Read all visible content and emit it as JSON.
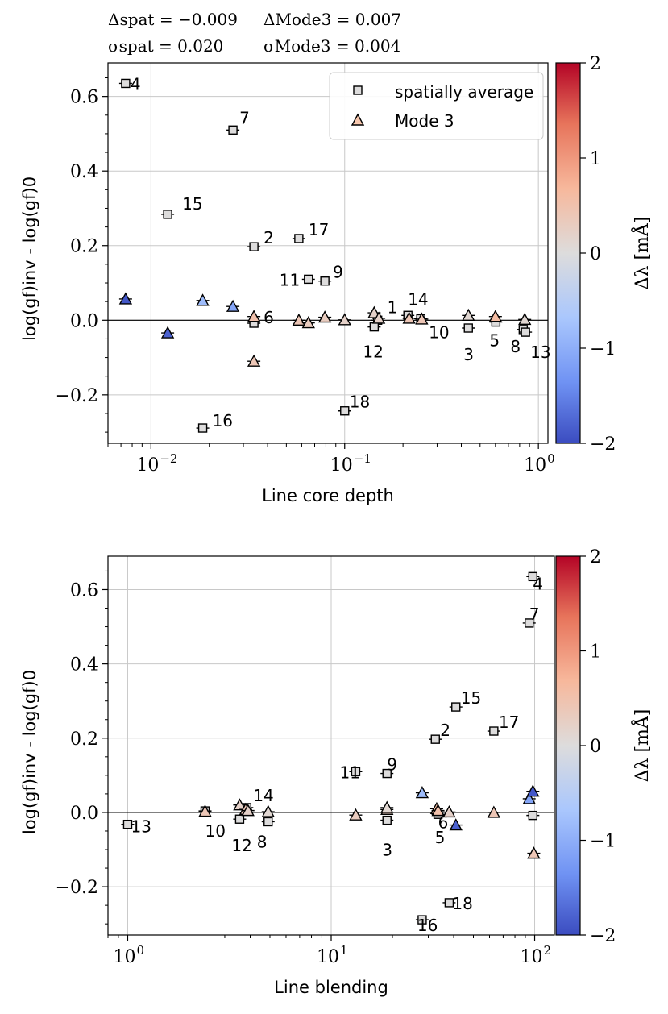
{
  "stats": {
    "delta_spat": "Δspat = −0.009",
    "delta_mode3": "ΔMode3 = 0.007",
    "sigma_spat": "σspat = 0.020",
    "sigma_mode3": "σMode3 = 0.004"
  },
  "legend": {
    "spatial": "spatially average",
    "mode3": "Mode 3"
  },
  "colorbar": {
    "label": "Δλ [mÅ]",
    "range": [
      -2,
      2
    ],
    "ticks": [
      "−2",
      "−1",
      "0",
      "1",
      "2"
    ],
    "colormap": "coolwarm",
    "colors": [
      "#3b4cc0",
      "#6f92f3",
      "#aac7fd",
      "#dddcdc",
      "#f7b89c",
      "#e7745b",
      "#b40426"
    ]
  },
  "chart_data": [
    {
      "type": "scatter",
      "title": "",
      "xlabel": "Line core depth",
      "ylabel": "log(gf)inv - log(gf)0",
      "xscale": "log",
      "xlim": [
        0.006,
        1.12
      ],
      "ylim": [
        -0.33,
        0.69
      ],
      "x_tick_labels": [
        "10−2",
        "10−1",
        "100"
      ],
      "y_tick_labels": [
        "−0.2",
        "0.0",
        "0.2",
        "0.4",
        "0.6"
      ],
      "grid": true,
      "legend_position": "top-right",
      "series": [
        {
          "name": "spatially average",
          "marker": "square",
          "points": [
            {
              "label": "4",
              "x": 0.0074,
              "y": 0.635,
              "c": 0.0
            },
            {
              "label": "7",
              "x": 0.0265,
              "y": 0.51,
              "c": 0.0
            },
            {
              "label": "15",
              "x": 0.0122,
              "y": 0.284,
              "c": 0.0
            },
            {
              "label": "2",
              "x": 0.034,
              "y": 0.197,
              "c": 0.0
            },
            {
              "label": "17",
              "x": 0.058,
              "y": 0.219,
              "c": 0.0
            },
            {
              "label": "11",
              "x": 0.065,
              "y": 0.11,
              "c": 0.0
            },
            {
              "label": "9",
              "x": 0.079,
              "y": 0.105,
              "c": 0.0
            },
            {
              "label": "6",
              "x": 0.034,
              "y": -0.008,
              "c": 0.0
            },
            {
              "label": "1",
              "x": 0.148,
              "y": 0.0,
              "c": 0.0
            },
            {
              "label": "12",
              "x": 0.142,
              "y": -0.018,
              "c": 0.0
            },
            {
              "label": "14",
              "x": 0.212,
              "y": 0.013,
              "c": 0.0
            },
            {
              "label": "10",
              "x": 0.247,
              "y": 0.004,
              "c": 0.0
            },
            {
              "label": "3",
              "x": 0.435,
              "y": -0.021,
              "c": 0.0
            },
            {
              "label": "5",
              "x": 0.603,
              "y": -0.005,
              "c": 0.0
            },
            {
              "label": "8",
              "x": 0.835,
              "y": -0.025,
              "c": 0.0
            },
            {
              "label": "13",
              "x": 0.858,
              "y": -0.032,
              "c": 0.0
            },
            {
              "label": "16",
              "x": 0.0185,
              "y": -0.289,
              "c": 0.0
            },
            {
              "label": "18",
              "x": 0.1,
              "y": -0.243,
              "c": 0.0
            }
          ]
        },
        {
          "name": "Mode 3",
          "marker": "triangle",
          "points": [
            {
              "label": "4",
              "x": 0.0074,
              "y": 0.057,
              "c": -1.9
            },
            {
              "label": "15",
              "x": 0.0122,
              "y": -0.034,
              "c": -1.8
            },
            {
              "label": "7",
              "x": 0.0185,
              "y": 0.053,
              "c": -0.8
            },
            {
              "label": "16",
              "x": 0.0265,
              "y": 0.037,
              "c": -1.1
            },
            {
              "label": "6",
              "x": 0.034,
              "y": 0.01,
              "c": 0.5
            },
            {
              "label": "2",
              "x": 0.034,
              "y": -0.11,
              "c": 0.4
            },
            {
              "label": "17",
              "x": 0.058,
              "y": 0.0,
              "c": 0.4
            },
            {
              "label": "11",
              "x": 0.065,
              "y": -0.007,
              "c": 0.3
            },
            {
              "label": "9",
              "x": 0.079,
              "y": 0.008,
              "c": 0.3
            },
            {
              "label": "18",
              "x": 0.1,
              "y": 0.001,
              "c": 0.2
            },
            {
              "label": "12",
              "x": 0.142,
              "y": 0.02,
              "c": 0.2
            },
            {
              "label": "1",
              "x": 0.15,
              "y": 0.005,
              "c": 0.2
            },
            {
              "label": "14",
              "x": 0.215,
              "y": 0.005,
              "c": 0.4
            },
            {
              "label": "10",
              "x": 0.25,
              "y": 0.003,
              "c": 0.4
            },
            {
              "label": "3",
              "x": 0.435,
              "y": 0.013,
              "c": 0.1
            },
            {
              "label": "5",
              "x": 0.6,
              "y": 0.01,
              "c": 0.6
            },
            {
              "label": "8",
              "x": 0.85,
              "y": 0.002,
              "c": 0.1
            }
          ]
        }
      ]
    },
    {
      "type": "scatter",
      "title": "",
      "xlabel": "Line blending",
      "ylabel": "log(gf)inv - log(gf)0",
      "xscale": "log",
      "xlim": [
        0.8,
        125
      ],
      "ylim": [
        -0.33,
        0.69
      ],
      "x_tick_labels": [
        "100",
        "101",
        "102"
      ],
      "y_tick_labels": [
        "−0.2",
        "0.0",
        "0.2",
        "0.4",
        "0.6"
      ],
      "grid": true,
      "series": [
        {
          "name": "spatially average",
          "marker": "square",
          "points": [
            {
              "label": "13",
              "x": 1.0,
              "y": -0.032,
              "c": 0.0
            },
            {
              "label": "10",
              "x": 2.4,
              "y": 0.004,
              "c": 0.0
            },
            {
              "label": "12",
              "x": 3.55,
              "y": -0.018,
              "c": 0.0
            },
            {
              "label": "14",
              "x": 3.85,
              "y": 0.013,
              "c": 0.0
            },
            {
              "label": "8",
              "x": 4.9,
              "y": -0.025,
              "c": 0.0
            },
            {
              "label": "11",
              "x": 13.2,
              "y": 0.11,
              "c": 0.0
            },
            {
              "label": "9",
              "x": 18.8,
              "y": 0.105,
              "c": 0.0
            },
            {
              "label": "3",
              "x": 18.8,
              "y": -0.021,
              "c": 0.0
            },
            {
              "label": "2",
              "x": 32.5,
              "y": 0.197,
              "c": 0.0
            },
            {
              "label": "5",
              "x": 33.5,
              "y": -0.005,
              "c": 0.0
            },
            {
              "label": "15",
              "x": 41.0,
              "y": 0.284,
              "c": 0.0
            },
            {
              "label": "17",
              "x": 63.0,
              "y": 0.219,
              "c": 0.0
            },
            {
              "label": "16",
              "x": 28.0,
              "y": -0.289,
              "c": 0.0
            },
            {
              "label": "18",
              "x": 38.0,
              "y": -0.243,
              "c": 0.0
            },
            {
              "label": "4",
              "x": 98.0,
              "y": 0.635,
              "c": 0.0
            },
            {
              "label": "7",
              "x": 94.0,
              "y": 0.51,
              "c": 0.0
            },
            {
              "label": "6",
              "x": 98.0,
              "y": -0.008,
              "c": 0.0
            }
          ]
        },
        {
          "name": "Mode 3",
          "marker": "triangle",
          "points": [
            {
              "label": "10",
              "x": 2.4,
              "y": 0.003,
              "c": 0.4
            },
            {
              "label": "12",
              "x": 3.55,
              "y": 0.02,
              "c": 0.2
            },
            {
              "label": "14",
              "x": 3.8,
              "y": 0.008,
              "c": 0.4
            },
            {
              "label": "1",
              "x": 3.9,
              "y": 0.005,
              "c": 0.2
            },
            {
              "label": "8",
              "x": 4.9,
              "y": 0.002,
              "c": 0.1
            },
            {
              "label": "11",
              "x": 13.2,
              "y": -0.007,
              "c": 0.3
            },
            {
              "label": "9",
              "x": 18.8,
              "y": 0.008,
              "c": 0.3
            },
            {
              "label": "3",
              "x": 18.8,
              "y": 0.013,
              "c": 0.1
            },
            {
              "label": "16",
              "x": 28.0,
              "y": 0.053,
              "c": -0.8
            },
            {
              "label": "5",
              "x": 33.0,
              "y": 0.01,
              "c": 0.6
            },
            {
              "label": "6",
              "x": 33.5,
              "y": 0.005,
              "c": 0.5
            },
            {
              "label": "18",
              "x": 38.0,
              "y": 0.001,
              "c": 0.2
            },
            {
              "label": "15",
              "x": 41.0,
              "y": -0.034,
              "c": -1.8
            },
            {
              "label": "17",
              "x": 63.0,
              "y": 0.0,
              "c": 0.4
            },
            {
              "label": "7",
              "x": 94.0,
              "y": 0.037,
              "c": -1.1
            },
            {
              "label": "4",
              "x": 98.0,
              "y": 0.057,
              "c": -1.9
            },
            {
              "label": "2",
              "x": 99.0,
              "y": -0.11,
              "c": 0.4
            }
          ],
          "labeled_points": [
            "6"
          ]
        }
      ]
    }
  ]
}
